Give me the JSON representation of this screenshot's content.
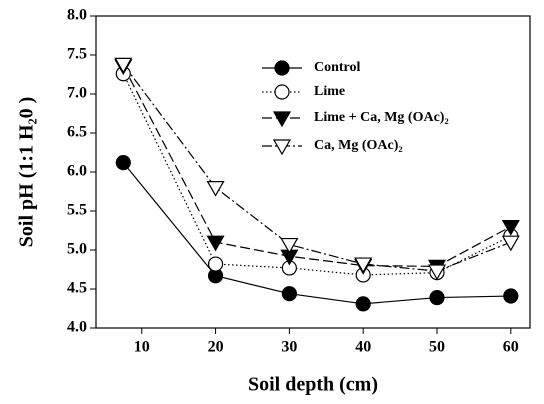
{
  "chart_data": {
    "type": "line",
    "xlabel": "Soil depth (cm)",
    "ylabel": "Soil pH (1:1 H₂0 )",
    "x": [
      7.5,
      20,
      30,
      40,
      50,
      60
    ],
    "series": [
      {
        "name": "Control",
        "color": "#000000",
        "marker": "circle",
        "marker_fill": "filled",
        "line_style": "solid",
        "values": [
          6.12,
          4.67,
          4.44,
          4.31,
          4.39,
          4.41
        ]
      },
      {
        "name": "Lime",
        "color": "#000000",
        "marker": "circle",
        "marker_fill": "open",
        "line_style": "dotted",
        "values": [
          7.26,
          4.82,
          4.77,
          4.68,
          4.71,
          5.18
        ]
      },
      {
        "name": "Lime + Ca, Mg (OAc)₂",
        "color": "#000000",
        "marker": "triangle-down",
        "marker_fill": "filled",
        "line_style": "dashed",
        "values": [
          7.36,
          5.1,
          4.92,
          4.8,
          4.79,
          5.3
        ]
      },
      {
        "name": "Ca, Mg (OAc)₂",
        "color": "#000000",
        "marker": "triangle-down",
        "marker_fill": "open",
        "line_style": "dashdot",
        "values": [
          7.38,
          5.8,
          5.07,
          4.82,
          4.73,
          5.1
        ]
      }
    ],
    "xlim": [
      3.8,
      62.6
    ],
    "xticks": [
      10,
      20,
      30,
      40,
      50,
      60
    ],
    "ylim": [
      4,
      8
    ],
    "yticks": [
      {
        "value": 4,
        "label": "4.0"
      },
      4.5,
      {
        "value": 5,
        "label": "5.0"
      },
      5.5,
      {
        "value": 6,
        "label": "6.0"
      },
      6.5,
      {
        "value": 7,
        "label": "7.0"
      },
      7.5,
      {
        "value": 8,
        "label": "8.0"
      }
    ],
    "grid": false,
    "legend_loc": "upper right"
  }
}
